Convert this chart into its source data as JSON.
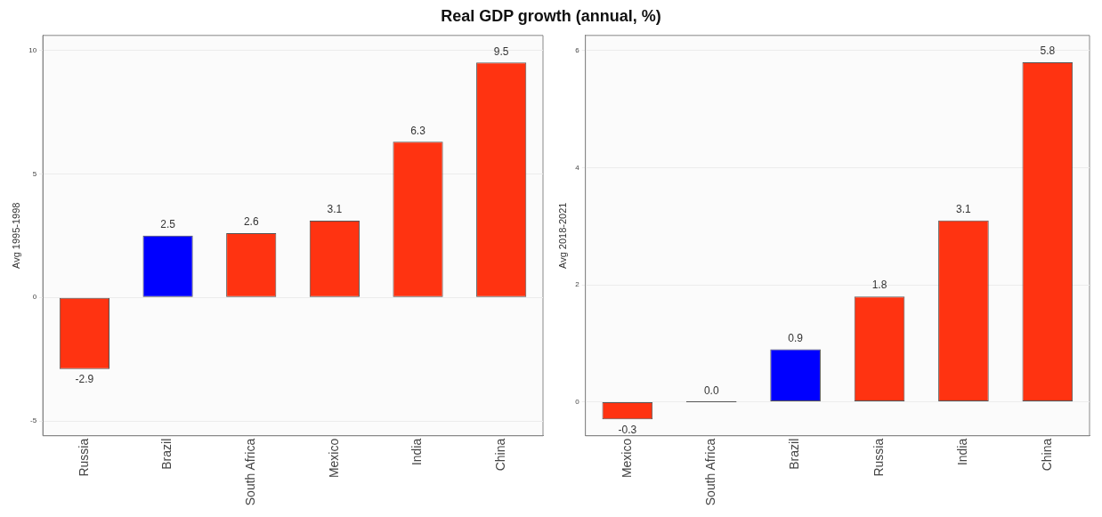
{
  "chart_data": [
    {
      "type": "bar",
      "title": "Real GDP growth (annual, %)",
      "ylabel": "Avg 1995-1998",
      "categories": [
        "Russia",
        "Brazil",
        "South Africa",
        "Mexico",
        "India",
        "China"
      ],
      "values": [
        -2.9,
        2.5,
        2.6,
        3.1,
        6.3,
        9.5
      ],
      "colors": [
        "#ff3311",
        "#0000ff",
        "#ff3311",
        "#ff3311",
        "#ff3311",
        "#ff3311"
      ],
      "value_labels": [
        "-2.9",
        "2.5",
        "2.6",
        "3.1",
        "6.3",
        "9.5"
      ],
      "ylim": [
        -5.6,
        10.6
      ],
      "yticks": [
        -5,
        0,
        5,
        10
      ],
      "grid": "y",
      "legend": false
    },
    {
      "type": "bar",
      "ylabel": "Avg 2018-2021",
      "categories": [
        "Mexico",
        "South Africa",
        "Brazil",
        "Russia",
        "India",
        "China"
      ],
      "values": [
        -0.3,
        0.0,
        0.9,
        1.8,
        3.1,
        5.8
      ],
      "colors": [
        "#ff3311",
        "#555555",
        "#0000ff",
        "#ff3311",
        "#ff3311",
        "#ff3311"
      ],
      "value_labels": [
        "-0.3",
        "0.0",
        "0.9",
        "1.8",
        "3.1",
        "5.8"
      ],
      "ylim": [
        -0.58,
        6.26
      ],
      "yticks": [
        0,
        2,
        4,
        6
      ],
      "grid": "y",
      "legend": false
    }
  ]
}
